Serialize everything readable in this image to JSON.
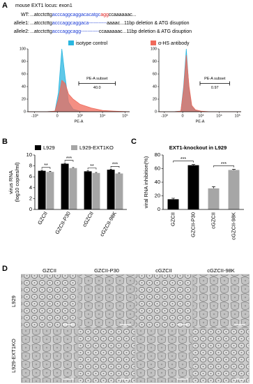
{
  "panel_letters": [
    "A",
    "B",
    "C",
    "D"
  ],
  "locus_title": "mouse EXT1 locus: exon1",
  "sequences": [
    {
      "label": "WT:",
      "parts": [
        {
          "text": "...atcctcttg",
          "color": "#000000"
        },
        {
          "text": "acccaggcaggacacatgc",
          "color": "#1f3fd6"
        },
        {
          "text": "agg",
          "color": "#e02020"
        },
        {
          "text": "ccaaaaaac...",
          "color": "#000000"
        }
      ]
    },
    {
      "label": "allele1:",
      "parts": [
        {
          "text": "...atcctcttg",
          "color": "#000000"
        },
        {
          "text": "acccaggcaggaca",
          "color": "#1f3fd6"
        },
        {
          "text": "-----------",
          "color": "#1f3fd6"
        },
        {
          "text": "aaaac...11bp deletion & ATG disuption",
          "color": "#000000"
        }
      ]
    },
    {
      "label": "allele2:",
      "parts": [
        {
          "text": "...atcctcttg",
          "color": "#000000"
        },
        {
          "text": "acccaggcagg",
          "color": "#1f3fd6"
        },
        {
          "text": "-----------",
          "color": "#1f3fd6"
        },
        {
          "text": "ccaaaaaac...11bp deletion & ATG disuption",
          "color": "#000000"
        }
      ]
    }
  ],
  "chart_data": [
    {
      "type": "area",
      "xlabel": "PE-A",
      "annotation": "PE-A subset",
      "gate_value": "40.0",
      "x": [
        -1.3,
        -0.5,
        -0.1,
        0.05,
        0.2,
        0.35,
        0.5,
        0.7,
        1,
        1.5,
        2,
        2.5,
        3.2
      ],
      "series": [
        {
          "name": "isotype control",
          "color": "#29b6e0",
          "values": [
            0,
            0,
            1,
            30,
            100,
            55,
            15,
            4,
            1,
            0,
            0,
            0,
            0
          ]
        },
        {
          "name": "α-HS antibody",
          "color": "#f06a5a",
          "values": [
            0,
            0,
            1,
            20,
            50,
            45,
            28,
            20,
            12,
            6,
            2,
            1,
            0
          ]
        }
      ],
      "xlim": [
        -1.3,
        3.2
      ],
      "xticks": [
        {
          "value": -1,
          "label": "-10³"
        },
        0,
        {
          "value": 1,
          "label": "10³"
        },
        {
          "value": 2,
          "label": "10⁴"
        },
        {
          "value": 3,
          "label": "10⁵"
        }
      ],
      "ylim": [
        0,
        100
      ],
      "yticks": [
        0,
        20,
        40,
        60,
        80,
        100
      ]
    },
    {
      "type": "area",
      "xlabel": "PE-A",
      "annotation": "PE-A subset",
      "gate_value": "0.97",
      "x": [
        -1.3,
        -0.5,
        -0.1,
        0.05,
        0.2,
        0.35,
        0.5,
        0.7,
        1,
        1.5,
        2,
        2.5,
        3.2
      ],
      "series": [
        {
          "color": "#29b6e0",
          "values": [
            0,
            0,
            1,
            40,
            100,
            35,
            8,
            2,
            0,
            0,
            0,
            0,
            0
          ]
        },
        {
          "color": "#f06a5a",
          "values": [
            0,
            0,
            1,
            35,
            90,
            40,
            10,
            3,
            1,
            0,
            0,
            0,
            0
          ]
        }
      ],
      "xlim": [
        -1.3,
        3.2
      ],
      "xticks": [
        {
          "value": -1,
          "label": "-10³"
        },
        0,
        {
          "value": 1,
          "label": "10³"
        },
        {
          "value": 2,
          "label": "10⁴"
        },
        {
          "value": 3,
          "label": "10⁵"
        }
      ],
      "ylim": [
        0,
        100
      ],
      "yticks": [
        0,
        20,
        40,
        60,
        80,
        100
      ]
    },
    {
      "type": "bar",
      "ylabel": [
        "virus RNA",
        "(log10 copies/ml)"
      ],
      "categories": [
        "GZCII",
        "GZCII-P30",
        "cGZCII",
        "cGZCII-98K"
      ],
      "series": [
        {
          "name": "L929",
          "color": "#000000",
          "values": [
            7.1,
            8.4,
            7.0,
            7.3
          ],
          "errors": [
            0.1,
            0.1,
            0.1,
            0.1
          ]
        },
        {
          "name": "L929-EXT1KO",
          "color": "#a6a6a6",
          "values": [
            6.9,
            7.6,
            6.7,
            6.6
          ],
          "errors": [
            0.1,
            0.1,
            0.1,
            0.1
          ]
        }
      ],
      "significance": [
        "**",
        "***",
        "**",
        "***"
      ],
      "ylim": [
        0,
        10
      ],
      "yticks": [
        0,
        2,
        4,
        6,
        8,
        10
      ]
    },
    {
      "type": "bar",
      "title": "EXT1-knockout in L929",
      "ylabel": [
        "viral RNA inhibition(%)"
      ],
      "categories": [
        "GZCII",
        "GZCII-P30",
        "cGZCII",
        "cGZCII-98K"
      ],
      "values": [
        15,
        65,
        31,
        58
      ],
      "errors": [
        1.5,
        1,
        2.5,
        1
      ],
      "colors": [
        "#000000",
        "#000000",
        "#a6a6a6",
        "#a6a6a6"
      ],
      "significance": [
        "***",
        "***"
      ],
      "ylim": [
        0,
        80
      ],
      "yticks": [
        0,
        20,
        40,
        60,
        80
      ]
    }
  ],
  "micrographs": {
    "columns": [
      "GZCII",
      "GZCII-P30",
      "cGZCII",
      "cGZCII-98K"
    ],
    "rows": [
      "L929",
      "L929-EXT1KO"
    ]
  }
}
